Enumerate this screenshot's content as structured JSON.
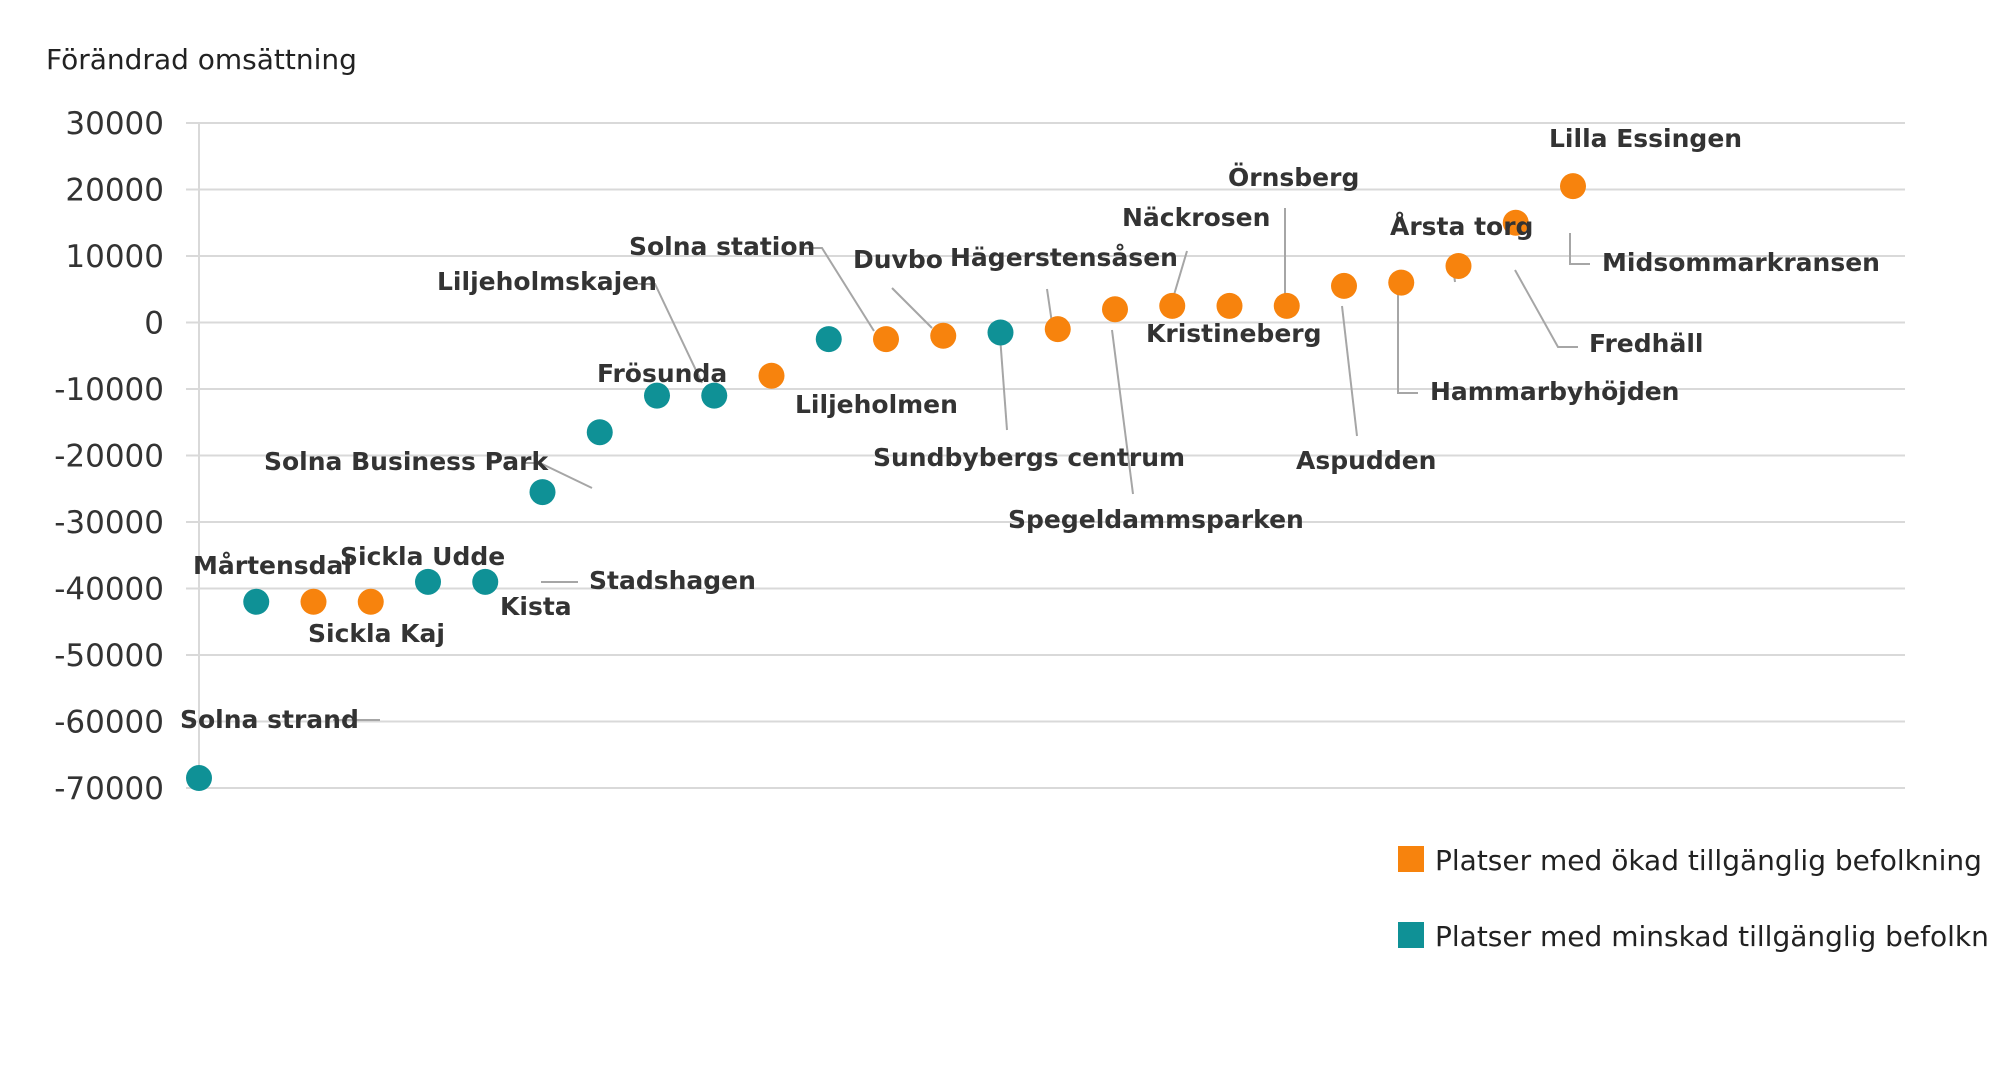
{
  "chart_data": {
    "type": "scatter",
    "title": "",
    "ylabel": "Förändrad omsättning",
    "xlabel": "",
    "ylim": [
      -70000,
      30000
    ],
    "yticks": [
      30000,
      20000,
      10000,
      0,
      -10000,
      -20000,
      -30000,
      -40000,
      -50000,
      -60000,
      -70000
    ],
    "grid": true,
    "legend_position": "bottom-right",
    "series": [
      {
        "name": "Platser med ökad tillgänglig befolkning",
        "color": "#f7830d"
      },
      {
        "name": "Platser med minskad tillgänglig befolkning",
        "color": "#0f9196"
      }
    ],
    "points": [
      {
        "label": "Solna strand",
        "x": 1,
        "y": -68500,
        "series": 1
      },
      {
        "label": "Mårtensdal",
        "x": 2,
        "y": -42000,
        "series": 1
      },
      {
        "label": "Sickla Kaj",
        "x": 3,
        "y": -42000,
        "series": 0
      },
      {
        "label": "Sickla Udde",
        "x": 4,
        "y": -42000,
        "series": 0
      },
      {
        "label": "Kista",
        "x": 5,
        "y": -39000,
        "series": 1
      },
      {
        "label": "Stadshagen",
        "x": 6,
        "y": -39000,
        "series": 1
      },
      {
        "label": "Solna Business Park",
        "x": 7,
        "y": -25500,
        "series": 1
      },
      {
        "label": "",
        "x": 8,
        "y": -16500,
        "series": 1
      },
      {
        "label": "Frösunda",
        "x": 9,
        "y": -11000,
        "series": 1
      },
      {
        "label": "Liljeholmskajen",
        "x": 10,
        "y": -11000,
        "series": 1
      },
      {
        "label": "Liljeholmen",
        "x": 11,
        "y": -8000,
        "series": 0
      },
      {
        "label": "Solna station",
        "x": 12,
        "y": -2500,
        "series": 1
      },
      {
        "label": "Duvbo",
        "x": 13,
        "y": -2500,
        "series": 0
      },
      {
        "label": "Sundbybergs centrum",
        "x": 14,
        "y": -2000,
        "series": 0
      },
      {
        "label": "Hägerstensåsen",
        "x": 15,
        "y": -1500,
        "series": 1
      },
      {
        "label": "Spegeldammsparken",
        "x": 16,
        "y": -1000,
        "series": 0
      },
      {
        "label": "Näckrosen",
        "x": 17,
        "y": 2000,
        "series": 0
      },
      {
        "label": "Kristineberg",
        "x": 18,
        "y": 2500,
        "series": 0
      },
      {
        "label": "Örnsberg",
        "x": 19,
        "y": 2500,
        "series": 0
      },
      {
        "label": "Aspudden",
        "x": 20,
        "y": 2500,
        "series": 0
      },
      {
        "label": "Hammarbyhöjden",
        "x": 21,
        "y": 5500,
        "series": 0
      },
      {
        "label": "Årsta torg",
        "x": 22,
        "y": 6000,
        "series": 0
      },
      {
        "label": "Fredhäll",
        "x": 23,
        "y": 8500,
        "series": 0
      },
      {
        "label": "Midsommarkransen",
        "x": 24,
        "y": 15000,
        "series": 0
      },
      {
        "label": "Lilla Essingen",
        "x": 25,
        "y": 20500,
        "series": 0
      }
    ]
  }
}
